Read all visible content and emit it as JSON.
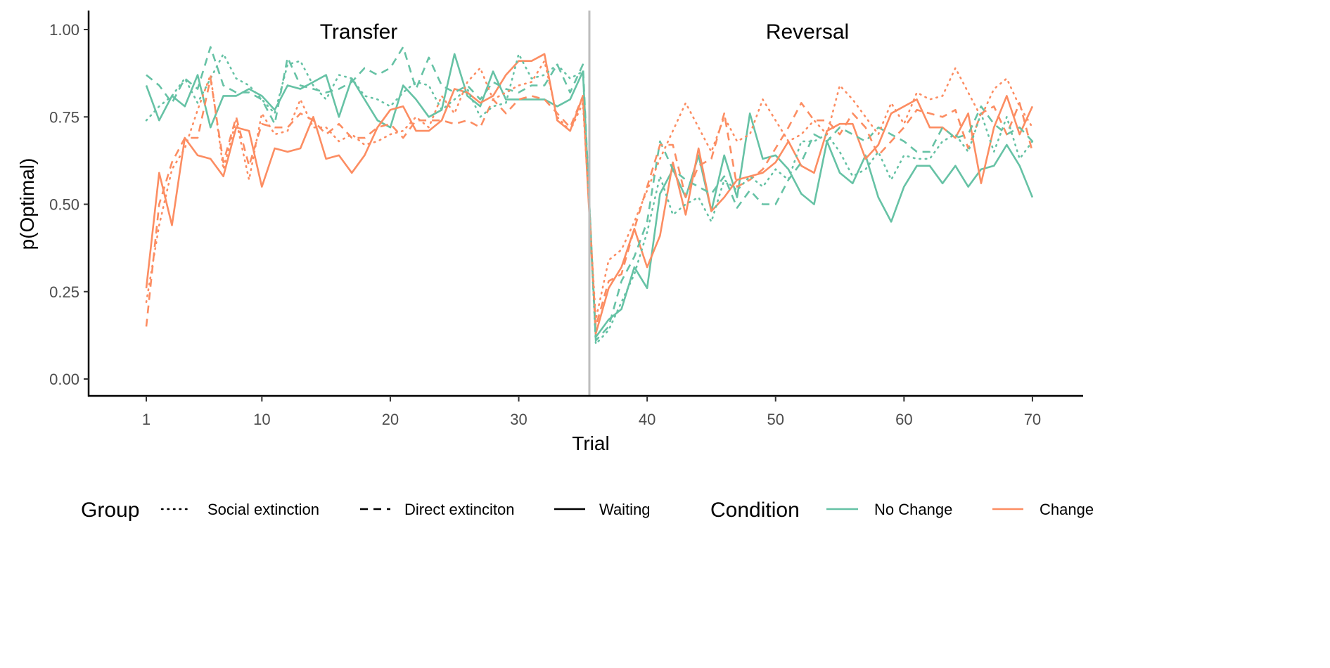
{
  "chart_data": {
    "type": "line",
    "xlabel": "Trial",
    "ylabel": "p(Optimal)",
    "xlim": [
      -3,
      77
    ],
    "ylim": [
      0,
      1
    ],
    "x_ticks": [
      1,
      10,
      20,
      30,
      40,
      50,
      60,
      70
    ],
    "y_ticks": [
      "0.00",
      "0.25",
      "0.50",
      "0.75",
      "1.00"
    ],
    "grid": false,
    "phase_divider_trial": 35.5,
    "phase_labels": [
      "Transfer",
      "Reversal"
    ],
    "legend": {
      "placement": "bottom",
      "group_title": "Group",
      "group_entries": [
        {
          "label": "Social extinction",
          "linetype": "dotted"
        },
        {
          "label": "Direct extinciton",
          "linetype": "dashed"
        },
        {
          "label": "Waiting",
          "linetype": "solid"
        }
      ],
      "condition_title": "Condition",
      "condition_entries": [
        {
          "label": "No Change",
          "color": "#66C2A5"
        },
        {
          "label": "Change",
          "color": "#FC8D62"
        }
      ]
    },
    "series": [
      {
        "name": "Waiting / No Change",
        "group": "Waiting",
        "condition": "No Change",
        "color": "#66C2A5",
        "linetype": "solid",
        "values": [
          0.84,
          0.74,
          0.81,
          0.78,
          0.87,
          0.72,
          0.81,
          0.81,
          0.83,
          0.81,
          0.77,
          0.84,
          0.83,
          0.85,
          0.87,
          0.75,
          0.86,
          0.8,
          0.74,
          0.72,
          0.84,
          0.8,
          0.75,
          0.77,
          0.93,
          0.81,
          0.78,
          0.88,
          0.8,
          0.8,
          0.8,
          0.8,
          0.78,
          0.8,
          0.88,
          0.12,
          0.17,
          0.2,
          0.32,
          0.26,
          0.53,
          0.6,
          0.52,
          0.64,
          0.48,
          0.64,
          0.52,
          0.76,
          0.63,
          0.64,
          0.6,
          0.53,
          0.5,
          0.68,
          0.59,
          0.56,
          0.64,
          0.52,
          0.45,
          0.55,
          0.61,
          0.61,
          0.56,
          0.61,
          0.55,
          0.6,
          0.61,
          0.67,
          0.61,
          0.52
        ]
      },
      {
        "name": "Waiting / Change",
        "group": "Waiting",
        "condition": "Change",
        "color": "#FC8D62",
        "linetype": "solid",
        "values": [
          0.26,
          0.59,
          0.44,
          0.69,
          0.64,
          0.63,
          0.58,
          0.72,
          0.71,
          0.55,
          0.66,
          0.65,
          0.66,
          0.75,
          0.63,
          0.64,
          0.59,
          0.64,
          0.72,
          0.77,
          0.78,
          0.71,
          0.71,
          0.74,
          0.83,
          0.82,
          0.79,
          0.81,
          0.87,
          0.91,
          0.91,
          0.93,
          0.74,
          0.71,
          0.81,
          0.13,
          0.26,
          0.32,
          0.43,
          0.32,
          0.41,
          0.62,
          0.47,
          0.66,
          0.48,
          0.52,
          0.57,
          0.58,
          0.59,
          0.62,
          0.68,
          0.61,
          0.59,
          0.71,
          0.73,
          0.73,
          0.63,
          0.67,
          0.76,
          0.78,
          0.8,
          0.72,
          0.72,
          0.69,
          0.76,
          0.56,
          0.72,
          0.81,
          0.7,
          0.78
        ]
      },
      {
        "name": "Direct extinciton / No Change",
        "group": "Direct extinciton",
        "condition": "No Change",
        "color": "#66C2A5",
        "linetype": "dashed",
        "values": [
          0.87,
          0.84,
          0.79,
          0.86,
          0.83,
          0.95,
          0.84,
          0.82,
          0.82,
          0.8,
          0.73,
          0.92,
          0.84,
          0.83,
          0.82,
          0.83,
          0.85,
          0.89,
          0.87,
          0.89,
          0.95,
          0.83,
          0.92,
          0.84,
          0.82,
          0.84,
          0.8,
          0.85,
          0.83,
          0.82,
          0.84,
          0.84,
          0.9,
          0.82,
          0.9,
          0.11,
          0.15,
          0.28,
          0.35,
          0.45,
          0.68,
          0.6,
          0.57,
          0.55,
          0.53,
          0.58,
          0.49,
          0.54,
          0.5,
          0.5,
          0.57,
          0.62,
          0.7,
          0.68,
          0.72,
          0.7,
          0.68,
          0.72,
          0.7,
          0.68,
          0.65,
          0.65,
          0.72,
          0.69,
          0.7,
          0.78,
          0.73,
          0.7,
          0.72,
          0.68
        ]
      },
      {
        "name": "Direct extinciton / Change",
        "group": "Direct extinciton",
        "condition": "Change",
        "color": "#FC8D62",
        "linetype": "dashed",
        "values": [
          0.15,
          0.5,
          0.62,
          0.69,
          0.69,
          0.86,
          0.62,
          0.75,
          0.61,
          0.73,
          0.72,
          0.72,
          0.76,
          0.74,
          0.7,
          0.73,
          0.69,
          0.69,
          0.72,
          0.73,
          0.69,
          0.74,
          0.74,
          0.74,
          0.73,
          0.74,
          0.72,
          0.8,
          0.76,
          0.8,
          0.81,
          0.8,
          0.76,
          0.72,
          0.81,
          0.15,
          0.28,
          0.3,
          0.43,
          0.55,
          0.67,
          0.67,
          0.52,
          0.61,
          0.63,
          0.76,
          0.55,
          0.57,
          0.6,
          0.66,
          0.72,
          0.79,
          0.74,
          0.74,
          0.7,
          0.76,
          0.72,
          0.64,
          0.68,
          0.72,
          0.77,
          0.76,
          0.75,
          0.77,
          0.66,
          0.76,
          0.78,
          0.7,
          0.79,
          0.65
        ]
      },
      {
        "name": "Social extinction / No Change",
        "group": "Social extinction",
        "condition": "No Change",
        "color": "#66C2A5",
        "linetype": "dotted",
        "values": [
          0.74,
          0.78,
          0.81,
          0.86,
          0.79,
          0.86,
          0.93,
          0.86,
          0.84,
          0.8,
          0.76,
          0.9,
          0.91,
          0.84,
          0.8,
          0.87,
          0.86,
          0.81,
          0.8,
          0.78,
          0.82,
          0.85,
          0.84,
          0.77,
          0.8,
          0.83,
          0.75,
          0.78,
          0.79,
          0.93,
          0.86,
          0.87,
          0.9,
          0.86,
          0.88,
          0.1,
          0.14,
          0.22,
          0.3,
          0.42,
          0.58,
          0.47,
          0.5,
          0.52,
          0.45,
          0.57,
          0.54,
          0.58,
          0.55,
          0.6,
          0.57,
          0.68,
          0.68,
          0.7,
          0.65,
          0.58,
          0.6,
          0.65,
          0.57,
          0.64,
          0.63,
          0.63,
          0.68,
          0.7,
          0.65,
          0.76,
          0.65,
          0.75,
          0.63,
          0.68
        ]
      },
      {
        "name": "Social extinction / Change",
        "group": "Social extinction",
        "condition": "Change",
        "color": "#FC8D62",
        "linetype": "dotted",
        "values": [
          0.22,
          0.44,
          0.6,
          0.66,
          0.77,
          0.87,
          0.6,
          0.74,
          0.57,
          0.76,
          0.7,
          0.71,
          0.8,
          0.72,
          0.72,
          0.68,
          0.7,
          0.67,
          0.68,
          0.7,
          0.71,
          0.75,
          0.72,
          0.81,
          0.76,
          0.85,
          0.89,
          0.8,
          0.82,
          0.84,
          0.85,
          0.91,
          0.75,
          0.71,
          0.79,
          0.17,
          0.34,
          0.37,
          0.45,
          0.54,
          0.63,
          0.71,
          0.79,
          0.72,
          0.65,
          0.75,
          0.68,
          0.7,
          0.8,
          0.74,
          0.68,
          0.7,
          0.74,
          0.7,
          0.84,
          0.8,
          0.75,
          0.7,
          0.79,
          0.73,
          0.82,
          0.8,
          0.81,
          0.89,
          0.82,
          0.75,
          0.83,
          0.86,
          0.78,
          0.72
        ]
      }
    ]
  }
}
